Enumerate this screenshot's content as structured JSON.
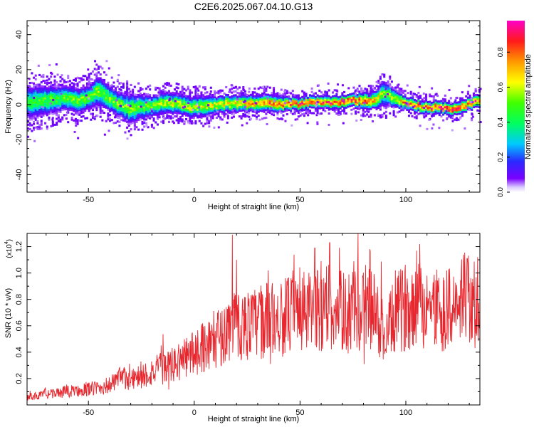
{
  "title": "C2E6.2025.067.04.10.G13",
  "chart_data": [
    {
      "type": "heatmap",
      "xlabel": "Height of straight line (km)",
      "ylabel": "Frequency (Hz)",
      "xlim": [
        -79,
        135
      ],
      "ylim": [
        -50,
        48
      ],
      "xticks": [
        -50,
        0,
        50,
        100
      ],
      "yticks": [
        -40,
        -20,
        0,
        20,
        40
      ],
      "colorbar": {
        "label": "Normalized spectral amplitude",
        "range": [
          0,
          0.98
        ],
        "ticks": [
          0.0,
          0.2,
          0.4,
          0.6,
          0.8
        ],
        "colormap": "rainbow (purple-blue-cyan-green-yellow-orange-red-magenta)"
      },
      "ridge": {
        "x": [
          -79,
          -70,
          -62,
          -55,
          -50,
          -46,
          -44,
          -40,
          -35,
          -30,
          -25,
          -20,
          -15,
          -10,
          -5,
          0,
          5,
          10,
          15,
          20,
          25,
          30,
          35,
          40,
          45,
          50,
          55,
          60,
          65,
          70,
          75,
          80,
          85,
          88,
          90,
          95,
          100,
          105,
          110,
          115,
          120,
          125,
          130,
          135
        ],
        "frequency": [
          1,
          2,
          3,
          2,
          4,
          8,
          6,
          3,
          -1,
          -3,
          -2,
          -1,
          1,
          0,
          -1,
          -2,
          -1,
          -1,
          0,
          0,
          0,
          0,
          1,
          0,
          0,
          0,
          1,
          1,
          1,
          1,
          2,
          2,
          2,
          5,
          6,
          3,
          0,
          -1,
          -2,
          -2,
          -3,
          -2,
          0,
          2
        ],
        "amplitude": [
          0.45,
          0.5,
          0.5,
          0.55,
          0.5,
          0.55,
          0.5,
          0.55,
          0.55,
          0.55,
          0.5,
          0.55,
          0.6,
          0.6,
          0.6,
          0.6,
          0.6,
          0.65,
          0.7,
          0.7,
          0.75,
          0.75,
          0.8,
          0.8,
          0.85,
          0.85,
          0.85,
          0.9,
          0.9,
          0.95,
          0.9,
          0.85,
          0.75,
          0.6,
          0.5,
          0.7,
          0.8,
          0.85,
          0.85,
          0.9,
          0.95,
          0.9,
          0.85,
          0.85
        ],
        "halfwidth": [
          8,
          7,
          6,
          6,
          6,
          7,
          7,
          6,
          6,
          7,
          6,
          5,
          5,
          5,
          5,
          5,
          5,
          4,
          4,
          4,
          4,
          4,
          4,
          4,
          3,
          3,
          3,
          3,
          3,
          3,
          3,
          4,
          4,
          6,
          6,
          4,
          3,
          3,
          3,
          3,
          3,
          3,
          3,
          3
        ]
      }
    },
    {
      "type": "line",
      "xlabel": "Height of straight line (km)",
      "ylabel": "SNR (10 * v/v)",
      "yscale_note": "(x10^4)",
      "xlim": [
        -79,
        135
      ],
      "ylim": [
        0,
        1.3
      ],
      "xticks": [
        -50,
        0,
        50,
        100
      ],
      "yticks": [
        0.2,
        0.4,
        0.6,
        0.8,
        1.0,
        1.2
      ],
      "color": "#e8262d",
      "series": [
        {
          "x": [
            -79,
            -70,
            -60,
            -50,
            -45,
            -40,
            -35,
            -30,
            -25,
            -20,
            -15,
            -10,
            -5,
            0,
            5,
            10,
            15,
            18,
            20,
            25,
            30,
            35,
            40,
            45,
            50,
            55,
            60,
            63,
            65,
            70,
            75,
            80,
            82,
            85,
            90,
            95,
            100,
            105,
            110,
            115,
            120,
            125,
            128,
            130,
            133,
            135
          ],
          "trend": [
            0.06,
            0.08,
            0.1,
            0.12,
            0.13,
            0.15,
            0.2,
            0.2,
            0.22,
            0.25,
            0.28,
            0.3,
            0.35,
            0.4,
            0.45,
            0.5,
            0.55,
            0.62,
            0.6,
            0.6,
            0.62,
            0.65,
            0.65,
            0.68,
            0.7,
            0.7,
            0.72,
            0.78,
            0.75,
            0.7,
            0.7,
            0.72,
            0.78,
            0.7,
            0.5,
            0.68,
            0.75,
            0.78,
            0.72,
            0.74,
            0.72,
            0.74,
            0.8,
            0.85,
            0.75,
            0.5
          ],
          "peaks": [
            {
              "x": 18,
              "y": 1.29
            },
            {
              "x": 20,
              "y": 1.1
            },
            {
              "x": 35,
              "y": 1.02
            },
            {
              "x": 57,
              "y": 1.19
            },
            {
              "x": 60,
              "y": 1.09
            },
            {
              "x": 64,
              "y": 1.23
            },
            {
              "x": 83,
              "y": 1.18
            },
            {
              "x": 95,
              "y": 1.02
            },
            {
              "x": 110,
              "y": 0.98
            },
            {
              "x": 128,
              "y": 0.98
            },
            {
              "x": 129,
              "y": 1.11
            }
          ]
        }
      ]
    }
  ]
}
